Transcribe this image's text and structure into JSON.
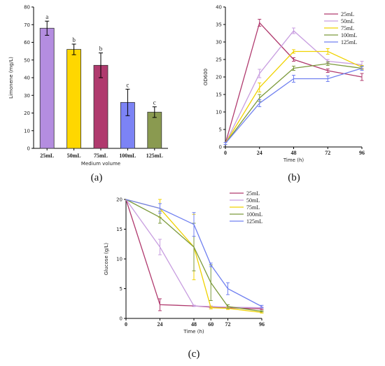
{
  "panel_labels": [
    "(a)",
    "(b)",
    "(c)"
  ],
  "colors": {
    "25mL": "#b03a6e",
    "50mL": "#c89ee0",
    "75mL": "#f0d200",
    "100mL": "#7c9a3c",
    "125mL": "#7080f0",
    "bar_a": "#b48de0",
    "bar_b": "#ffd700",
    "bar_c": "#b03a6e",
    "bar_d": "#7c83f5",
    "bar_e": "#8a9a50"
  },
  "chart_data": [
    {
      "type": "bar",
      "panel": "(a)",
      "title": "",
      "ylabel": "Limonene  (mg/L)",
      "xlabel": "Medium volume",
      "ylim": [
        0,
        80
      ],
      "yticks": [
        0,
        10,
        20,
        30,
        40,
        50,
        60,
        70,
        80
      ],
      "categories": [
        "25mL",
        "50mL",
        "75mL",
        "100mL",
        "125mL"
      ],
      "values": [
        68,
        56,
        47,
        26,
        20.5
      ],
      "errors": [
        4,
        3,
        7,
        7.5,
        3
      ],
      "significance": [
        "a",
        "b",
        "b",
        "c",
        "c"
      ],
      "grid": false
    },
    {
      "type": "line",
      "panel": "(b)",
      "title": "",
      "ylabel": "OD600",
      "xlabel": "Time  (h)",
      "x": [
        0,
        24,
        48,
        72,
        96
      ],
      "xlim": [
        0,
        96
      ],
      "ylim": [
        0,
        40
      ],
      "yticks": [
        0,
        5,
        10,
        15,
        20,
        25,
        30,
        35,
        40
      ],
      "legend": "top-right",
      "grid": false,
      "series": [
        {
          "name": "25mL",
          "values": [
            1,
            35.5,
            25,
            21.8,
            20
          ],
          "errors": [
            0.3,
            1,
            0.5,
            0.5,
            1
          ]
        },
        {
          "name": "50mL",
          "values": [
            1,
            21,
            33.2,
            24.5,
            23.5
          ],
          "errors": [
            0.3,
            1.2,
            0.8,
            0.5,
            1
          ]
        },
        {
          "name": "75mL",
          "values": [
            1,
            17,
            27.3,
            27.3,
            22.8
          ],
          "errors": [
            0.3,
            1.3,
            0.5,
            0.8,
            0.5
          ]
        },
        {
          "name": "100mL",
          "values": [
            1,
            14,
            22.5,
            23.8,
            22.5
          ],
          "errors": [
            0.3,
            1,
            0.6,
            0.5,
            0.5
          ]
        },
        {
          "name": "125mL",
          "values": [
            1,
            12.5,
            19.5,
            19.5,
            22.5
          ],
          "errors": [
            0.3,
            1,
            1,
            0.8,
            0.6
          ]
        }
      ]
    },
    {
      "type": "line",
      "panel": "(c)",
      "title": "",
      "ylabel": "Glucose  (g/L)",
      "xlabel": "Time  (h)",
      "xticks": [
        0,
        24,
        48,
        60,
        72,
        96
      ],
      "xlim": [
        0,
        96
      ],
      "ylim": [
        0,
        20
      ],
      "yticks": [
        0,
        5,
        10,
        15,
        20
      ],
      "legend": "top-right",
      "grid": false,
      "series": [
        {
          "name": "25mL",
          "x": [
            0,
            24,
            48,
            60,
            72,
            96
          ],
          "values": [
            20,
            2.3,
            2.1,
            1.9,
            1.8,
            1.6
          ],
          "errors": [
            0,
            1,
            0.1,
            0.1,
            0.1,
            0.1
          ]
        },
        {
          "name": "50mL",
          "x": [
            0,
            24,
            48,
            60,
            72,
            96
          ],
          "values": [
            20,
            12,
            2.1,
            2.0,
            1.9,
            1.8
          ],
          "errors": [
            0,
            1.3,
            0.1,
            0.1,
            0.1,
            0.1
          ]
        },
        {
          "name": "75mL",
          "x": [
            0,
            24,
            48,
            60,
            72,
            96
          ],
          "values": [
            20,
            18.5,
            12,
            1.8,
            1.7,
            1.0
          ],
          "errors": [
            0,
            1.5,
            5.5,
            0.2,
            0.2,
            0.1
          ]
        },
        {
          "name": "100mL",
          "x": [
            0,
            24,
            48,
            60,
            72,
            96
          ],
          "values": [
            20,
            17,
            12,
            6,
            2,
            1.2
          ],
          "errors": [
            0,
            1,
            4,
            3,
            0.3,
            0.1
          ]
        },
        {
          "name": "125mL",
          "x": [
            0,
            24,
            48,
            60,
            72,
            96
          ],
          "values": [
            20,
            18.5,
            15.8,
            9,
            5,
            2
          ],
          "errors": [
            0,
            0.8,
            2,
            0.3,
            1,
            0.2
          ]
        }
      ]
    }
  ]
}
